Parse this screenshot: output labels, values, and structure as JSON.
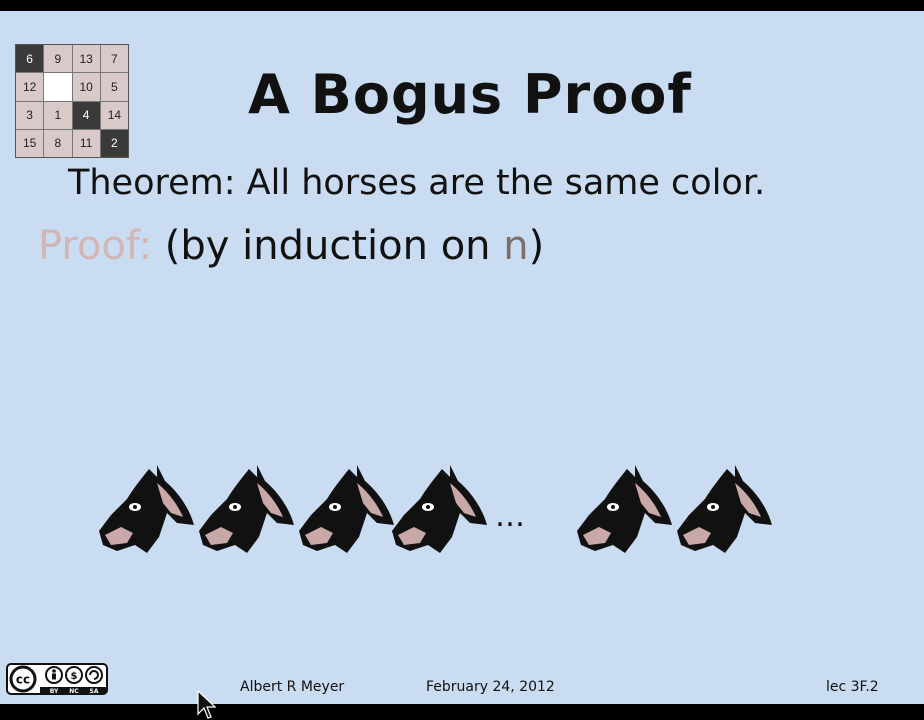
{
  "slide": {
    "title": "A Bogus Proof",
    "theorem": "Theorem: All horses are the same color.",
    "proof_label": "Proof:",
    "proof_prefix": " (by induction on ",
    "proof_var": "n",
    "proof_suffix": ")",
    "ellipsis": "…"
  },
  "puzzle": {
    "tiles": [
      {
        "label": "6",
        "style": "dark"
      },
      {
        "label": "9",
        "style": "light"
      },
      {
        "label": "13",
        "style": "light"
      },
      {
        "label": "7",
        "style": "light"
      },
      {
        "label": "12",
        "style": "light"
      },
      {
        "label": "",
        "style": "empty"
      },
      {
        "label": "10",
        "style": "light"
      },
      {
        "label": "5",
        "style": "light"
      },
      {
        "label": "3",
        "style": "light"
      },
      {
        "label": "1",
        "style": "light"
      },
      {
        "label": "4",
        "style": "dark"
      },
      {
        "label": "14",
        "style": "light"
      },
      {
        "label": "15",
        "style": "light"
      },
      {
        "label": "8",
        "style": "light"
      },
      {
        "label": "11",
        "style": "light"
      },
      {
        "label": "2",
        "style": "dark"
      }
    ]
  },
  "horses": {
    "count_shown": 6,
    "icon": "horse-head-icon"
  },
  "footer": {
    "author": "Albert R Meyer",
    "date": "February 24, 2012",
    "lecture": "lec 3F.2",
    "license_icon": "creative-commons-by-nc-sa-icon",
    "license_marks": [
      "BY",
      "NC",
      "SA"
    ]
  },
  "colors": {
    "slide_background": "#c9dcf2",
    "proof_label": "#d2b6b6",
    "text": "#111111"
  }
}
